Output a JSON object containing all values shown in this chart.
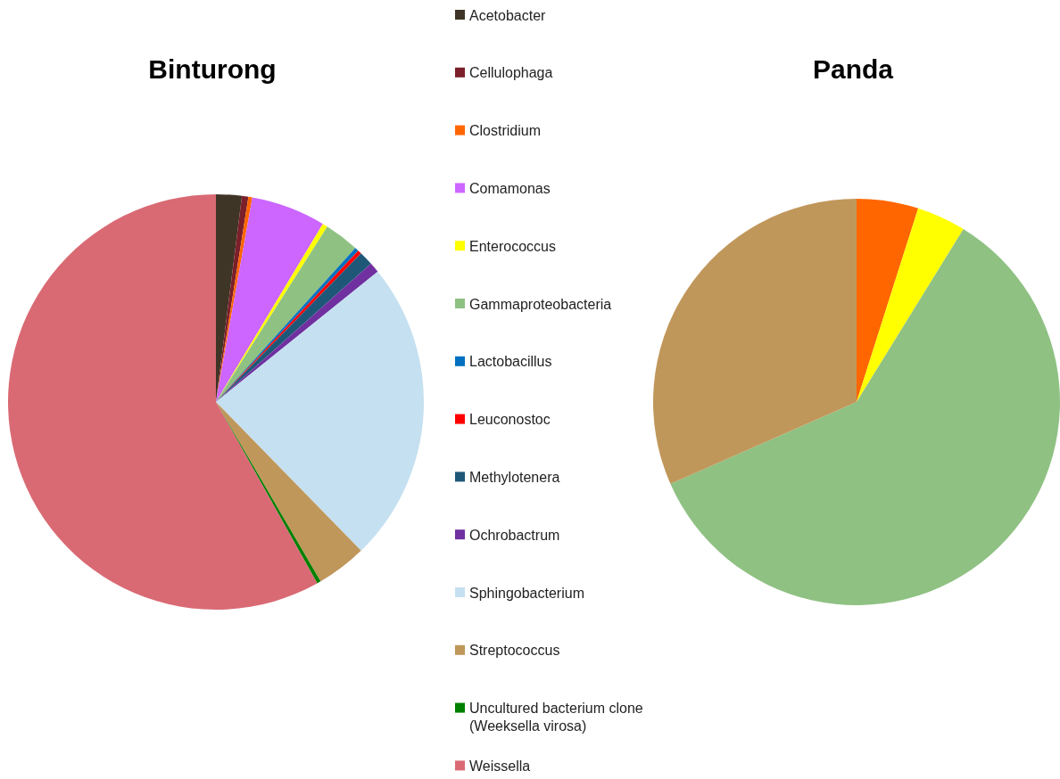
{
  "chart_data": [
    {
      "type": "pie",
      "title": "Binturong",
      "legend": "right",
      "categories": [
        "Acetobacter",
        "Cellulophaga",
        "Clostridium",
        "Comamonas",
        "Enterococcus",
        "Gammaproteobacteria",
        "Lactobacillus",
        "Leuconostoc",
        "Methylotenera",
        "Ochrobactrum",
        "Sphingobacterium",
        "Streptococcus",
        "Uncultured bacterium clone (Weeksella virosa)",
        "Weissella"
      ],
      "values": [
        2.0,
        0.5,
        0.3,
        5.8,
        0.4,
        2.7,
        0.3,
        0.3,
        1.1,
        0.8,
        23.5,
        3.9,
        0.3,
        58.1
      ],
      "colors": [
        "#3f3526",
        "#7b1f2a",
        "#ff6600",
        "#cc66ff",
        "#ffff00",
        "#8fc183",
        "#0070c0",
        "#ff0000",
        "#1f5778",
        "#7030a0",
        "#c5e0f0",
        "#c0975a",
        "#008000",
        "#d96a74"
      ]
    },
    {
      "type": "pie",
      "title": "Panda",
      "categories": [
        null,
        null,
        null,
        null
      ],
      "values": [
        4.9,
        3.9,
        59.6,
        31.6
      ],
      "colors": [
        "#ff6600",
        "#ffff00",
        "#8fc183",
        "#c0975a"
      ]
    }
  ]
}
